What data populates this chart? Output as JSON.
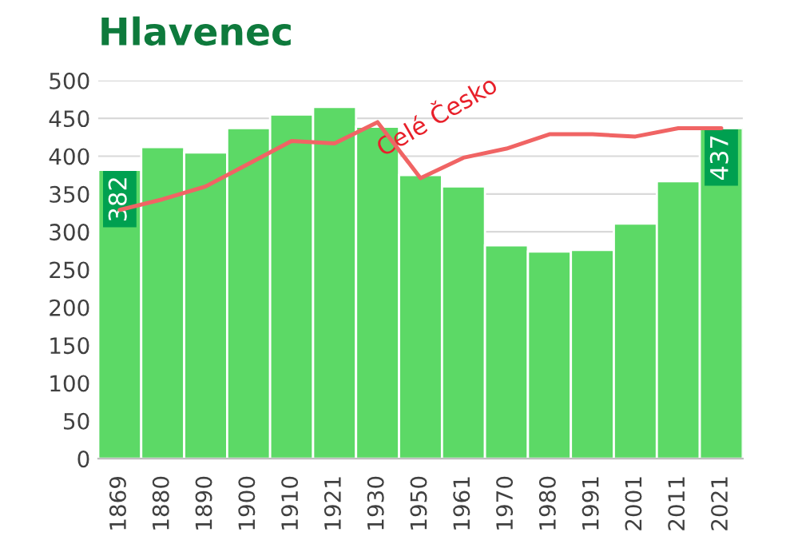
{
  "chart_data": {
    "type": "bar",
    "title": "Hlavenec",
    "categories": [
      "1869",
      "1880",
      "1890",
      "1900",
      "1910",
      "1921",
      "1930",
      "1950",
      "1961",
      "1970",
      "1980",
      "1991",
      "2001",
      "2011",
      "2021"
    ],
    "series": [
      {
        "color": "#5cd966",
        "values": [
          382,
          412,
          405,
          437,
          455,
          465,
          439,
          375,
          360,
          282,
          274,
          276,
          311,
          367,
          437
        ],
        "value_labels": [
          "382",
          null,
          null,
          null,
          null,
          null,
          null,
          null,
          null,
          null,
          null,
          null,
          null,
          null,
          "437"
        ]
      },
      {
        "type": "line",
        "name": "Celé Česko",
        "color": "#f06464",
        "values": [
          329,
          343,
          360,
          390,
          420,
          417,
          445,
          371,
          398,
          410,
          429,
          429,
          426,
          437,
          437
        ]
      }
    ],
    "ylim": [
      0,
      500
    ],
    "yticks": [
      0,
      50,
      100,
      150,
      200,
      250,
      300,
      350,
      400,
      450,
      500
    ],
    "grid": "y",
    "legend": false
  }
}
